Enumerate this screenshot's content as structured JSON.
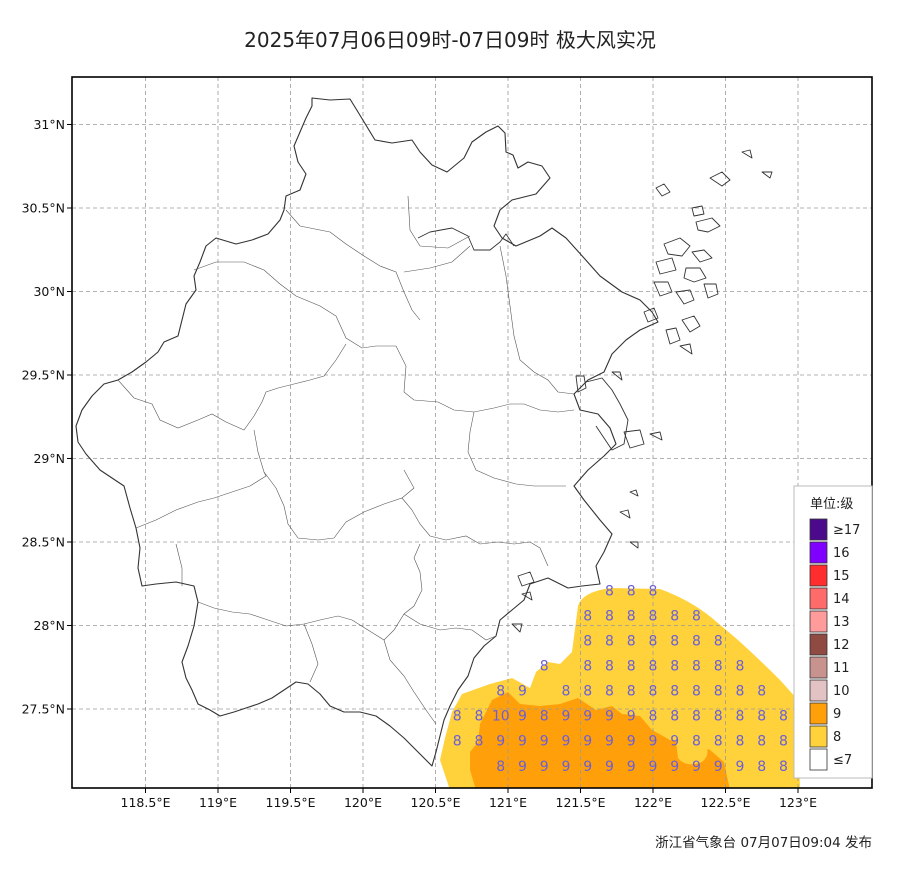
{
  "title": "2025年07月06日09时-07日09时 极大风实况",
  "footer": "浙江省气象台 07月07日09:04 发布",
  "axes": {
    "x_ticks": [
      {
        "value": 118.5,
        "label": "118.5°E"
      },
      {
        "value": 119.0,
        "label": "119°E"
      },
      {
        "value": 119.5,
        "label": "119.5°E"
      },
      {
        "value": 120.0,
        "label": "120°E"
      },
      {
        "value": 120.5,
        "label": "120.5°E"
      },
      {
        "value": 121.0,
        "label": "121°E"
      },
      {
        "value": 121.5,
        "label": "121.5°E"
      },
      {
        "value": 122.0,
        "label": "122°E"
      },
      {
        "value": 122.5,
        "label": "122.5°E"
      },
      {
        "value": 123.0,
        "label": "123°E"
      }
    ],
    "y_ticks": [
      {
        "value": 31.0,
        "label": "31°N"
      },
      {
        "value": 30.5,
        "label": "30.5°N"
      },
      {
        "value": 30.0,
        "label": "30°N"
      },
      {
        "value": 29.5,
        "label": "29.5°N"
      },
      {
        "value": 29.0,
        "label": "29°N"
      },
      {
        "value": 28.5,
        "label": "28.5°N"
      },
      {
        "value": 28.0,
        "label": "28°N"
      },
      {
        "value": 27.5,
        "label": "27.5°N"
      }
    ],
    "lon_range": [
      118.0,
      123.5
    ],
    "lat_range": [
      27.1,
      31.3
    ],
    "grid": "dashed"
  },
  "legend": {
    "title": "单位:级",
    "items": [
      {
        "label": "≥17",
        "color": "#4b0a8c"
      },
      {
        "label": "16",
        "color": "#8000ff"
      },
      {
        "label": "15",
        "color": "#ff2d2d"
      },
      {
        "label": "14",
        "color": "#ff6a6a"
      },
      {
        "label": "13",
        "color": "#ff9b9b"
      },
      {
        "label": "12",
        "color": "#8f4a42"
      },
      {
        "label": "11",
        "color": "#c8928e"
      },
      {
        "label": "10",
        "color": "#e2c2c2"
      },
      {
        "label": "9",
        "color": "#ff9f0a"
      },
      {
        "label": "8",
        "color": "#ffd23c"
      },
      {
        "label": "≤7",
        "color": "#ffffff"
      }
    ]
  },
  "wind_grid": {
    "lons": [
      120.65,
      120.8,
      120.95,
      121.1,
      121.25,
      121.4,
      121.55,
      121.7,
      121.85,
      122.0,
      122.15,
      122.3,
      122.45,
      122.6,
      122.75,
      122.9
    ],
    "rows": [
      {
        "lat": 28.21,
        "values": [
          null,
          null,
          null,
          null,
          null,
          null,
          null,
          8,
          8,
          8,
          null,
          null,
          null,
          null,
          null,
          null
        ]
      },
      {
        "lat": 28.06,
        "values": [
          null,
          null,
          null,
          null,
          null,
          null,
          8,
          8,
          8,
          8,
          8,
          8,
          null,
          null,
          null,
          null
        ]
      },
      {
        "lat": 27.91,
        "values": [
          null,
          null,
          null,
          null,
          null,
          null,
          8,
          8,
          8,
          8,
          8,
          8,
          8,
          null,
          null,
          null
        ]
      },
      {
        "lat": 27.76,
        "values": [
          null,
          null,
          null,
          null,
          8,
          null,
          8,
          8,
          8,
          8,
          8,
          8,
          8,
          8,
          null,
          null
        ]
      },
      {
        "lat": 27.61,
        "values": [
          null,
          null,
          8,
          9,
          null,
          8,
          8,
          8,
          8,
          8,
          8,
          8,
          8,
          8,
          8,
          null
        ]
      },
      {
        "lat": 27.46,
        "values": [
          8,
          8,
          10,
          9,
          8,
          9,
          9,
          9,
          9,
          8,
          8,
          8,
          8,
          8,
          8,
          8
        ]
      },
      {
        "lat": 27.31,
        "values": [
          8,
          8,
          9,
          9,
          9,
          9,
          9,
          9,
          9,
          9,
          9,
          8,
          8,
          8,
          8,
          8
        ]
      },
      {
        "lat": 27.16,
        "values": [
          null,
          null,
          8,
          9,
          9,
          9,
          9,
          9,
          9,
          9,
          9,
          9,
          9,
          9,
          8,
          8
        ]
      }
    ]
  }
}
